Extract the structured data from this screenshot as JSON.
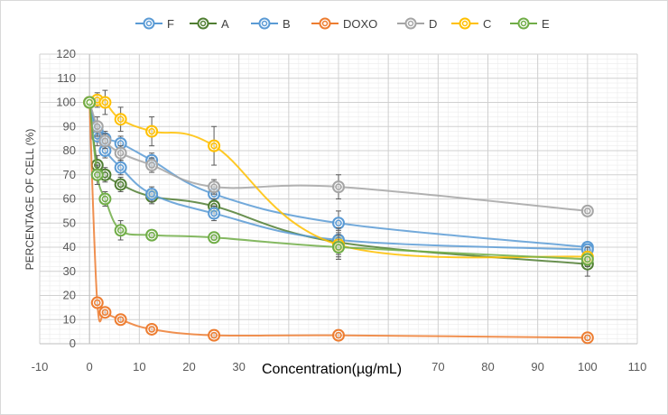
{
  "chart_data": {
    "type": "line",
    "title": "",
    "xlabel": "Concentration(µg/mL)",
    "ylabel": "PERCENTAGE OF CELL (%)",
    "xlim": [
      -10,
      110
    ],
    "ylim": [
      0,
      120
    ],
    "x_ticks": [
      -10,
      0,
      10,
      20,
      30,
      40,
      50,
      60,
      70,
      80,
      90,
      100,
      110
    ],
    "y_ticks": [
      0,
      10,
      20,
      30,
      40,
      50,
      60,
      70,
      80,
      90,
      100,
      110,
      120
    ],
    "grid": true,
    "legend_position": "top",
    "series": [
      {
        "name": "F",
        "color": "#5b9bd5",
        "x": [
          0,
          1.56,
          3.125,
          6.25,
          12.5,
          25,
          50,
          100
        ],
        "y": [
          100,
          88,
          85,
          83,
          76,
          62,
          50,
          40
        ],
        "err": [
          0,
          4,
          3,
          3,
          3,
          3,
          5,
          1
        ]
      },
      {
        "name": "A",
        "color": "#507e32",
        "x": [
          0,
          1.56,
          3.125,
          6.25,
          12.5,
          25,
          50,
          100
        ],
        "y": [
          100,
          74,
          70,
          66,
          61,
          57,
          42,
          33
        ],
        "err": [
          0,
          4,
          3,
          3,
          3,
          3,
          5,
          5
        ]
      },
      {
        "name": "B",
        "color": "#5b9bd5",
        "x": [
          0,
          1.56,
          3.125,
          6.25,
          12.5,
          25,
          50,
          100
        ],
        "y": [
          100,
          86,
          80,
          73,
          62,
          54,
          43,
          39
        ],
        "err": [
          0,
          4,
          3,
          3,
          3,
          3,
          5,
          1
        ]
      },
      {
        "name": "DOXO",
        "color": "#ed7d31",
        "x": [
          0,
          1.56,
          3.125,
          6.25,
          12.5,
          25,
          50,
          100
        ],
        "y": [
          100,
          17,
          13,
          10,
          6,
          3.5,
          3.5,
          2.5
        ],
        "err": [
          0,
          1,
          1,
          1,
          1,
          1,
          1,
          1
        ]
      },
      {
        "name": "D",
        "color": "#a5a5a5",
        "x": [
          0,
          1.56,
          3.125,
          6.25,
          12.5,
          25,
          50,
          100
        ],
        "y": [
          100,
          90,
          84,
          79,
          74,
          65,
          65,
          55
        ],
        "err": [
          0,
          4,
          3,
          3,
          3,
          3,
          5,
          1
        ]
      },
      {
        "name": "C",
        "color": "#ffc000",
        "x": [
          0,
          1.56,
          3.125,
          6.25,
          12.5,
          25,
          50,
          100
        ],
        "y": [
          100,
          101,
          100,
          93,
          88,
          82,
          41,
          36
        ],
        "err": [
          0,
          3,
          5,
          5,
          6,
          8,
          5,
          4
        ]
      },
      {
        "name": "E",
        "color": "#70ad47",
        "x": [
          0,
          1.56,
          3.125,
          6.25,
          12.5,
          25,
          50,
          100
        ],
        "y": [
          100,
          70,
          60,
          47,
          45,
          44,
          40,
          35
        ],
        "err": [
          0,
          4,
          3,
          4,
          1,
          1,
          5,
          1
        ]
      }
    ]
  }
}
